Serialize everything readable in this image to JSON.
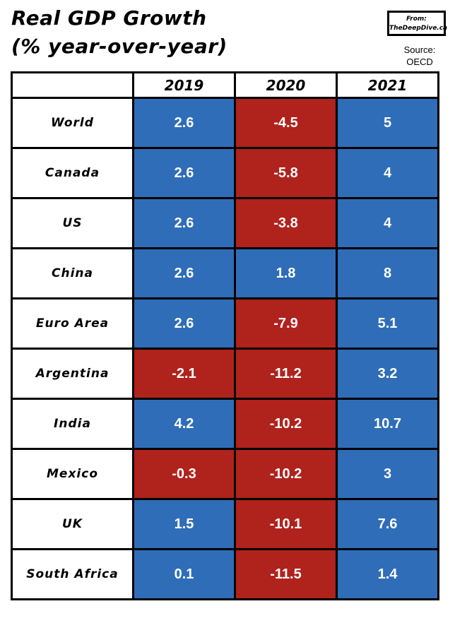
{
  "title": {
    "line1": "Real GDP Growth",
    "line2": "(% year-over-year)"
  },
  "source_box": {
    "line1": "From:",
    "line2": "TheDeepDive.ca"
  },
  "source_label": {
    "line1": "Source:",
    "line2": "OECD"
  },
  "colors": {
    "positive": "#2f6db8",
    "negative": "#b0221c"
  },
  "chart_data": {
    "type": "table",
    "title": "Real GDP Growth (% year-over-year)",
    "columns": [
      "2019",
      "2020",
      "2021"
    ],
    "rows": [
      {
        "country": "World",
        "values": [
          "2.6",
          "-4.5",
          "5"
        ]
      },
      {
        "country": "Canada",
        "values": [
          "2.6",
          "-5.8",
          "4"
        ]
      },
      {
        "country": "US",
        "values": [
          "2.6",
          "-3.8",
          "4"
        ]
      },
      {
        "country": "China",
        "values": [
          "2.6",
          "1.8",
          "8"
        ]
      },
      {
        "country": "Euro Area",
        "values": [
          "2.6",
          "-7.9",
          "5.1"
        ]
      },
      {
        "country": "Argentina",
        "values": [
          "-2.1",
          "-11.2",
          "3.2"
        ]
      },
      {
        "country": "India",
        "values": [
          "4.2",
          "-10.2",
          "10.7"
        ]
      },
      {
        "country": "Mexico",
        "values": [
          "-0.3",
          "-10.2",
          "3"
        ]
      },
      {
        "country": "UK",
        "values": [
          "1.5",
          "-10.1",
          "7.6"
        ]
      },
      {
        "country": "South Africa",
        "values": [
          "0.1",
          "-11.5",
          "1.4"
        ]
      }
    ]
  }
}
